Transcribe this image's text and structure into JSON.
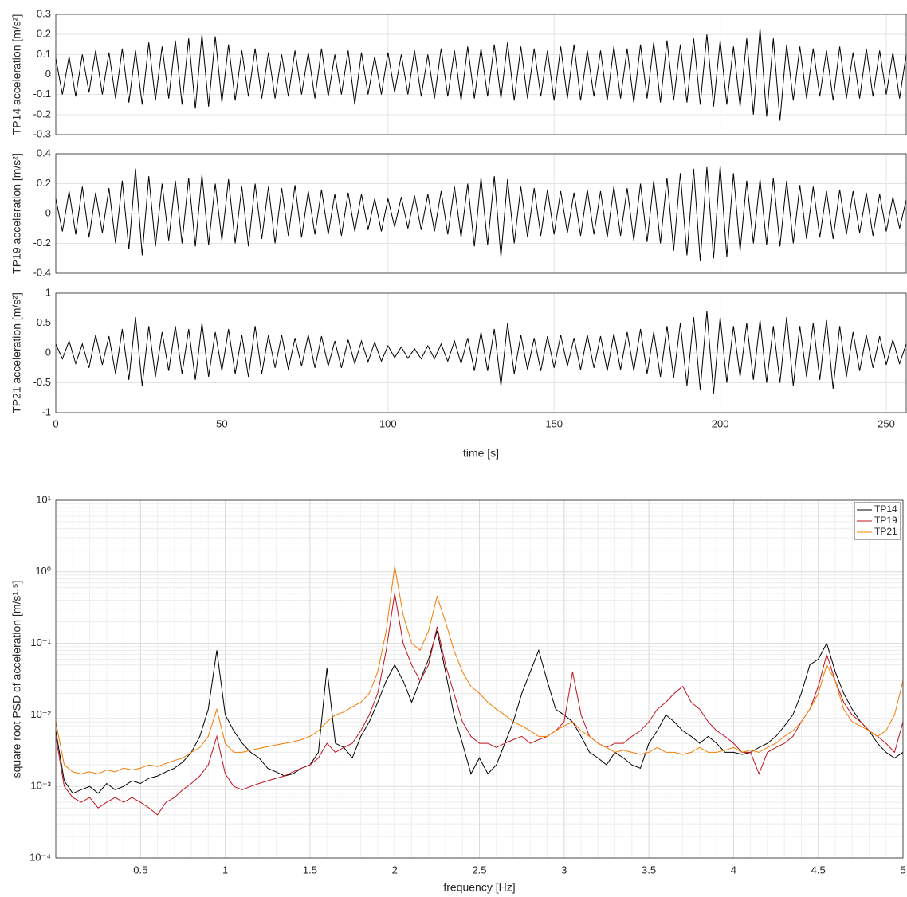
{
  "chart_data": [
    {
      "type": "line",
      "xlabel": "time [s]",
      "xlim": [
        0,
        256
      ],
      "xticks": [
        0,
        50,
        100,
        150,
        200,
        250
      ],
      "grid": true,
      "color": "#000000",
      "x": [
        0,
        2,
        4,
        6,
        8,
        10,
        12,
        14,
        16,
        18,
        20,
        22,
        24,
        26,
        28,
        30,
        32,
        34,
        36,
        38,
        40,
        42,
        44,
        46,
        48,
        50,
        52,
        54,
        56,
        58,
        60,
        62,
        64,
        66,
        68,
        70,
        72,
        74,
        76,
        78,
        80,
        82,
        84,
        86,
        88,
        90,
        92,
        94,
        96,
        98,
        100,
        102,
        104,
        106,
        108,
        110,
        112,
        114,
        116,
        118,
        120,
        122,
        124,
        126,
        128,
        130,
        132,
        134,
        136,
        138,
        140,
        142,
        144,
        146,
        148,
        150,
        152,
        154,
        156,
        158,
        160,
        162,
        164,
        166,
        168,
        170,
        172,
        174,
        176,
        178,
        180,
        182,
        184,
        186,
        188,
        190,
        192,
        194,
        196,
        198,
        200,
        202,
        204,
        206,
        208,
        210,
        212,
        214,
        216,
        218,
        220,
        222,
        224,
        226,
        228,
        230,
        232,
        234,
        236,
        238,
        240,
        242,
        244,
        246,
        248,
        250,
        252,
        254,
        256
      ],
      "panels": [
        {
          "ylabel": "TP14 acceleration [m/s²]",
          "ylim": [
            -0.3,
            0.3
          ],
          "yticks": [
            -0.3,
            -0.2,
            -0.1,
            0,
            0.1,
            0.2,
            0.3
          ],
          "values": [
            0.08,
            -0.1,
            0.09,
            -0.11,
            0.1,
            -0.09,
            0.12,
            -0.1,
            0.11,
            -0.12,
            0.13,
            -0.14,
            0.12,
            -0.15,
            0.16,
            -0.13,
            0.14,
            -0.12,
            0.17,
            -0.15,
            0.18,
            -0.17,
            0.2,
            -0.16,
            0.19,
            -0.14,
            0.15,
            -0.13,
            0.12,
            -0.11,
            0.13,
            -0.12,
            0.11,
            -0.12,
            0.1,
            -0.11,
            0.12,
            -0.1,
            0.11,
            -0.12,
            0.13,
            -0.11,
            0.1,
            -0.1,
            0.12,
            -0.15,
            0.11,
            -0.1,
            0.09,
            -0.1,
            0.11,
            -0.09,
            0.1,
            -0.1,
            0.12,
            -0.11,
            0.1,
            -0.12,
            0.13,
            -0.11,
            0.12,
            -0.13,
            0.14,
            -0.12,
            0.13,
            -0.11,
            0.15,
            -0.12,
            0.16,
            -0.13,
            0.14,
            -0.12,
            0.13,
            -0.11,
            0.12,
            -0.13,
            0.14,
            -0.12,
            0.15,
            -0.13,
            0.12,
            -0.11,
            0.12,
            -0.13,
            0.14,
            -0.12,
            0.13,
            -0.14,
            0.15,
            -0.12,
            0.16,
            -0.14,
            0.17,
            -0.13,
            0.15,
            -0.14,
            0.18,
            -0.15,
            0.2,
            -0.16,
            0.17,
            -0.15,
            0.14,
            -0.16,
            0.18,
            -0.2,
            0.23,
            -0.21,
            0.18,
            -0.23,
            0.15,
            -0.13,
            0.14,
            -0.12,
            0.13,
            -0.11,
            0.12,
            -0.13,
            0.14,
            -0.12,
            0.11,
            -0.12,
            0.13,
            -0.11,
            0.12,
            -0.1,
            0.11,
            -0.12,
            0.1
          ]
        },
        {
          "ylabel": "TP19 acceleration [m/s²]",
          "ylim": [
            -0.4,
            0.4
          ],
          "yticks": [
            -0.4,
            -0.2,
            0,
            0.2,
            0.4
          ],
          "values": [
            0.1,
            -0.12,
            0.15,
            -0.14,
            0.18,
            -0.16,
            0.14,
            -0.13,
            0.17,
            -0.2,
            0.22,
            -0.24,
            0.3,
            -0.28,
            0.25,
            -0.22,
            0.2,
            -0.18,
            0.22,
            -0.2,
            0.24,
            -0.22,
            0.26,
            -0.21,
            0.2,
            -0.18,
            0.23,
            -0.2,
            0.18,
            -0.22,
            0.2,
            -0.17,
            0.18,
            -0.2,
            0.17,
            -0.15,
            0.19,
            -0.16,
            0.15,
            -0.14,
            0.16,
            -0.14,
            0.13,
            -0.15,
            0.14,
            -0.12,
            0.13,
            -0.11,
            0.1,
            -0.12,
            0.1,
            -0.09,
            0.11,
            -0.1,
            0.12,
            -0.11,
            0.13,
            -0.12,
            0.15,
            -0.14,
            0.18,
            -0.16,
            0.2,
            -0.22,
            0.24,
            -0.21,
            0.25,
            -0.29,
            0.23,
            -0.2,
            0.18,
            -0.16,
            0.17,
            -0.15,
            0.16,
            -0.14,
            0.15,
            -0.13,
            0.14,
            -0.15,
            0.16,
            -0.14,
            0.15,
            -0.16,
            0.18,
            -0.15,
            0.17,
            -0.18,
            0.2,
            -0.19,
            0.22,
            -0.2,
            0.24,
            -0.25,
            0.27,
            -0.28,
            0.3,
            -0.32,
            0.31,
            -0.3,
            0.32,
            -0.29,
            0.27,
            -0.25,
            0.22,
            -0.2,
            0.23,
            -0.21,
            0.24,
            -0.22,
            0.22,
            -0.2,
            0.19,
            -0.17,
            0.18,
            -0.16,
            0.15,
            -0.17,
            0.16,
            -0.14,
            0.15,
            -0.13,
            0.14,
            -0.15,
            0.13,
            -0.12,
            0.11,
            -0.1,
            0.09
          ]
        },
        {
          "ylabel": "TP21 acceleration [m/s²]",
          "ylim": [
            -1,
            1
          ],
          "yticks": [
            -1,
            -0.5,
            0,
            0.5,
            1
          ],
          "values": [
            0.15,
            -0.1,
            0.2,
            -0.18,
            0.15,
            -0.25,
            0.3,
            -0.2,
            0.28,
            -0.35,
            0.4,
            -0.45,
            0.6,
            -0.55,
            0.45,
            -0.4,
            0.35,
            -0.3,
            0.45,
            -0.35,
            0.4,
            -0.45,
            0.5,
            -0.4,
            0.35,
            -0.3,
            0.4,
            -0.35,
            0.3,
            -0.4,
            0.45,
            -0.35,
            0.3,
            -0.25,
            0.3,
            -0.28,
            0.25,
            -0.22,
            0.3,
            -0.25,
            0.28,
            -0.22,
            0.2,
            -0.25,
            0.22,
            -0.18,
            0.2,
            -0.15,
            0.18,
            -0.14,
            0.12,
            -0.08,
            0.1,
            -0.09,
            0.07,
            -0.1,
            0.12,
            -0.1,
            0.15,
            -0.14,
            0.2,
            -0.18,
            0.25,
            -0.3,
            0.35,
            -0.3,
            0.4,
            -0.55,
            0.5,
            -0.35,
            0.3,
            -0.28,
            0.25,
            -0.3,
            0.28,
            -0.25,
            0.3,
            -0.22,
            0.25,
            -0.28,
            0.3,
            -0.25,
            0.28,
            -0.3,
            0.32,
            -0.28,
            0.35,
            -0.3,
            0.4,
            -0.35,
            0.35,
            -0.4,
            0.45,
            -0.42,
            0.5,
            -0.55,
            0.6,
            -0.62,
            0.7,
            -0.68,
            0.6,
            -0.5,
            0.45,
            -0.4,
            0.5,
            -0.45,
            0.55,
            -0.5,
            0.45,
            -0.5,
            0.6,
            -0.55,
            0.45,
            -0.4,
            0.5,
            -0.45,
            0.55,
            -0.6,
            0.45,
            -0.4,
            0.35,
            -0.3,
            0.3,
            -0.25,
            0.28,
            -0.2,
            0.22,
            -0.18,
            0.15
          ]
        }
      ]
    },
    {
      "type": "line",
      "yscale": "log",
      "xlabel": "frequency [Hz]",
      "ylabel": "square root PSD of acceleration [m/s¹·⁵]",
      "xlim": [
        0,
        5
      ],
      "xticks": [
        0.5,
        1,
        1.5,
        2,
        2.5,
        3,
        3.5,
        4,
        4.5,
        5
      ],
      "ylim": [
        0.0001,
        10
      ],
      "yticks": [
        {
          "value": 0.0001,
          "label": "10⁻⁴"
        },
        {
          "value": 0.001,
          "label": "10⁻³"
        },
        {
          "value": 0.01,
          "label": "10⁻²"
        },
        {
          "value": 0.1,
          "label": "10⁻¹"
        },
        {
          "value": 1,
          "label": "10⁰"
        },
        {
          "value": 10,
          "label": "10¹"
        }
      ],
      "grid": true,
      "legend": "northeast",
      "x": [
        0,
        0.05,
        0.1,
        0.15,
        0.2,
        0.25,
        0.3,
        0.35,
        0.4,
        0.45,
        0.5,
        0.55,
        0.6,
        0.65,
        0.7,
        0.75,
        0.8,
        0.85,
        0.9,
        0.95,
        1,
        1.05,
        1.1,
        1.15,
        1.2,
        1.25,
        1.3,
        1.35,
        1.4,
        1.45,
        1.5,
        1.55,
        1.6,
        1.65,
        1.7,
        1.75,
        1.8,
        1.85,
        1.9,
        1.95,
        2,
        2.05,
        2.1,
        2.15,
        2.2,
        2.25,
        2.3,
        2.35,
        2.4,
        2.45,
        2.5,
        2.55,
        2.6,
        2.65,
        2.7,
        2.75,
        2.8,
        2.85,
        2.9,
        2.95,
        3,
        3.05,
        3.1,
        3.15,
        3.2,
        3.25,
        3.3,
        3.35,
        3.4,
        3.45,
        3.5,
        3.55,
        3.6,
        3.65,
        3.7,
        3.75,
        3.8,
        3.85,
        3.9,
        3.95,
        4,
        4.05,
        4.1,
        4.15,
        4.2,
        4.25,
        4.3,
        4.35,
        4.4,
        4.45,
        4.5,
        4.55,
        4.6,
        4.65,
        4.7,
        4.75,
        4.8,
        4.85,
        4.9,
        4.95,
        5
      ],
      "series": [
        {
          "name": "TP14",
          "color": "#000000",
          "values": [
            0.006,
            0.0012,
            0.0008,
            0.0009,
            0.001,
            0.0008,
            0.0011,
            0.0009,
            0.001,
            0.0012,
            0.0011,
            0.0013,
            0.0014,
            0.0016,
            0.0018,
            0.0022,
            0.003,
            0.005,
            0.012,
            0.08,
            0.01,
            0.006,
            0.004,
            0.003,
            0.0025,
            0.0018,
            0.0016,
            0.0014,
            0.0015,
            0.0018,
            0.002,
            0.003,
            0.045,
            0.004,
            0.0035,
            0.0025,
            0.005,
            0.008,
            0.015,
            0.03,
            0.05,
            0.03,
            0.015,
            0.03,
            0.06,
            0.15,
            0.04,
            0.01,
            0.004,
            0.0015,
            0.0025,
            0.0015,
            0.002,
            0.004,
            0.008,
            0.02,
            0.04,
            0.08,
            0.03,
            0.012,
            0.01,
            0.008,
            0.005,
            0.003,
            0.0025,
            0.002,
            0.003,
            0.0025,
            0.002,
            0.0018,
            0.004,
            0.006,
            0.01,
            0.008,
            0.006,
            0.005,
            0.004,
            0.005,
            0.004,
            0.003,
            0.003,
            0.0028,
            0.003,
            0.0035,
            0.004,
            0.005,
            0.007,
            0.01,
            0.02,
            0.05,
            0.06,
            0.1,
            0.04,
            0.02,
            0.012,
            0.008,
            0.006,
            0.004,
            0.003,
            0.0025,
            0.003
          ]
        },
        {
          "name": "TP19",
          "color": "#c1121f",
          "values": [
            0.005,
            0.001,
            0.0007,
            0.0006,
            0.0007,
            0.0005,
            0.0006,
            0.0007,
            0.0006,
            0.0007,
            0.0006,
            0.0005,
            0.0004,
            0.0006,
            0.0007,
            0.0009,
            0.0011,
            0.0014,
            0.002,
            0.005,
            0.0015,
            0.001,
            0.0009,
            0.001,
            0.0011,
            0.0012,
            0.0013,
            0.0014,
            0.0016,
            0.0018,
            0.002,
            0.0025,
            0.004,
            0.003,
            0.0035,
            0.004,
            0.006,
            0.01,
            0.02,
            0.08,
            0.5,
            0.1,
            0.05,
            0.03,
            0.05,
            0.17,
            0.05,
            0.02,
            0.008,
            0.005,
            0.004,
            0.004,
            0.0035,
            0.004,
            0.0045,
            0.005,
            0.004,
            0.0045,
            0.005,
            0.006,
            0.008,
            0.04,
            0.01,
            0.005,
            0.004,
            0.0035,
            0.004,
            0.004,
            0.005,
            0.006,
            0.008,
            0.012,
            0.015,
            0.02,
            0.025,
            0.015,
            0.012,
            0.008,
            0.006,
            0.005,
            0.004,
            0.003,
            0.003,
            0.0015,
            0.003,
            0.0035,
            0.004,
            0.005,
            0.008,
            0.012,
            0.025,
            0.07,
            0.03,
            0.015,
            0.01,
            0.008,
            0.006,
            0.005,
            0.004,
            0.003,
            0.008
          ]
        },
        {
          "name": "TP21",
          "color": "#f57c00",
          "values": [
            0.008,
            0.002,
            0.0016,
            0.0015,
            0.0016,
            0.0015,
            0.0017,
            0.0016,
            0.0018,
            0.0017,
            0.0018,
            0.002,
            0.0019,
            0.0021,
            0.0023,
            0.0025,
            0.003,
            0.0035,
            0.005,
            0.012,
            0.004,
            0.003,
            0.003,
            0.0032,
            0.0034,
            0.0036,
            0.0038,
            0.004,
            0.0042,
            0.0045,
            0.005,
            0.006,
            0.008,
            0.01,
            0.011,
            0.013,
            0.015,
            0.02,
            0.04,
            0.15,
            1.2,
            0.25,
            0.1,
            0.08,
            0.15,
            0.45,
            0.2,
            0.08,
            0.04,
            0.025,
            0.02,
            0.015,
            0.012,
            0.01,
            0.008,
            0.007,
            0.006,
            0.005,
            0.005,
            0.006,
            0.007,
            0.008,
            0.006,
            0.005,
            0.004,
            0.0035,
            0.003,
            0.0032,
            0.003,
            0.0028,
            0.003,
            0.0035,
            0.003,
            0.003,
            0.0028,
            0.003,
            0.0035,
            0.003,
            0.003,
            0.0032,
            0.0035,
            0.003,
            0.0032,
            0.003,
            0.0035,
            0.004,
            0.005,
            0.006,
            0.008,
            0.012,
            0.02,
            0.05,
            0.03,
            0.012,
            0.008,
            0.007,
            0.006,
            0.005,
            0.006,
            0.01,
            0.03
          ]
        }
      ]
    }
  ]
}
